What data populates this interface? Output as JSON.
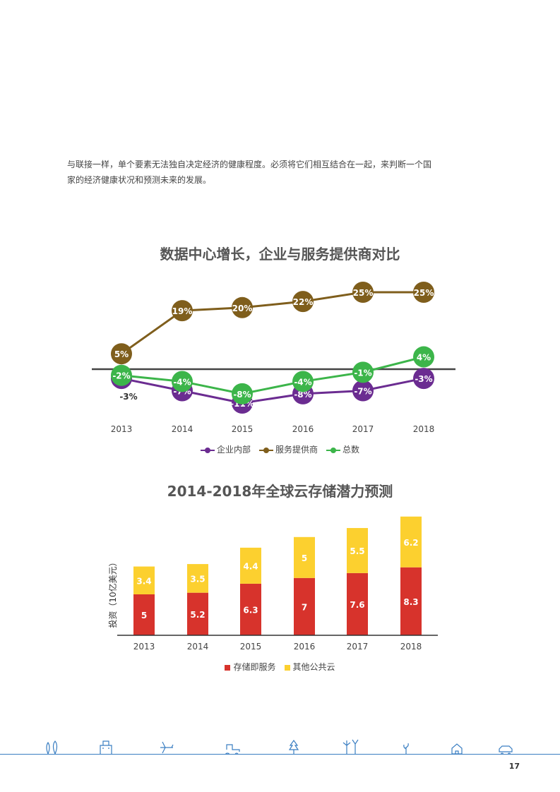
{
  "intro": {
    "line1": "与联接一样，单个要素无法独自决定经济的健康程度。必须将它们相互结合在一起，来判断一个国",
    "line2": "家的经济健康状况和预测未来的发展。"
  },
  "page_number": "17",
  "footer_icons": [
    "tree-icon",
    "building-icon",
    "airplane-icon",
    "tractor-icon",
    "pine-tree-icon",
    "wind-turbine-icon",
    "plant-icon",
    "house-icon",
    "car-icon"
  ],
  "colors": {
    "enterprise": "#6b2c91",
    "provider": "#7f5e1c",
    "total": "#3cb54a",
    "iaas": "#d7332c",
    "public": "#fcd02f",
    "footer": "#3a7ec2"
  },
  "chart_data": [
    {
      "type": "line",
      "title": "数据中心增长，企业与服务提供商对比",
      "categories": [
        "2013",
        "2014",
        "2015",
        "2016",
        "2017",
        "2018"
      ],
      "series": [
        {
          "name": "企业内部",
          "values": [
            -3,
            -7,
            -11,
            -8,
            -7,
            -3
          ],
          "labels": [
            "-3%",
            "-7%",
            "-11%",
            "-8%",
            "-7%",
            "-3%"
          ],
          "color": "#6b2c91"
        },
        {
          "name": "服务提供商",
          "values": [
            5,
            19,
            20,
            22,
            25,
            25
          ],
          "labels": [
            "5%",
            "19%",
            "20%",
            "22%",
            "25%",
            "25%"
          ],
          "color": "#7f5e1c"
        },
        {
          "name": "总数",
          "values": [
            -2,
            -4,
            -8,
            -4,
            -1,
            4
          ],
          "labels": [
            "-2%",
            "-4%",
            "-8%",
            "-4%",
            "-1%",
            "4%"
          ],
          "color": "#3cb54a"
        }
      ],
      "legend": "bottom",
      "grid": false
    },
    {
      "type": "bar",
      "stacked": true,
      "title": "2014-2018年全球云存储潜力预测",
      "ylabel": "投资（10亿美元）",
      "categories": [
        "2013",
        "2014",
        "2015",
        "2016",
        "2017",
        "2018"
      ],
      "series": [
        {
          "name": "存储即服务",
          "values": [
            5,
            5.2,
            6.3,
            7,
            7.6,
            8.3
          ],
          "labels": [
            "5",
            "5.2",
            "6.3",
            "7",
            "7.6",
            "8.3"
          ],
          "color": "#d7332c"
        },
        {
          "name": "其他公共云",
          "values": [
            3.4,
            3.5,
            4.4,
            5,
            5.5,
            6.2
          ],
          "labels": [
            "3.4",
            "3.5",
            "4.4",
            "5",
            "5.5",
            "6.2"
          ],
          "color": "#fcd02f"
        }
      ],
      "legend": "bottom",
      "grid": false
    }
  ]
}
